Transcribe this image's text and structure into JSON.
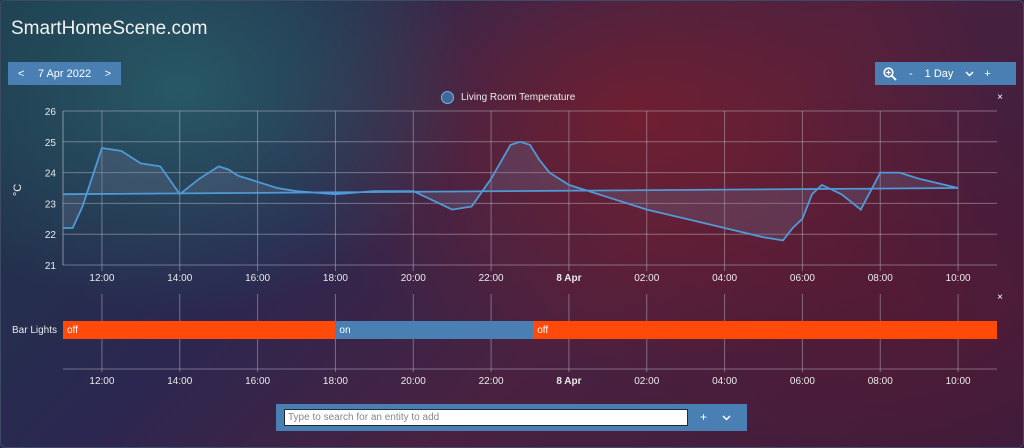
{
  "site": {
    "title": "SmartHomeScene.com"
  },
  "date_nav": {
    "prev": "<",
    "date": "7 Apr 2022",
    "next": ">"
  },
  "range": {
    "zoom_out": "-",
    "value": "1 Day",
    "zoom_in": "+"
  },
  "close_label": "×",
  "chart_data": {
    "type": "line",
    "series": [
      {
        "name": "Living Room Temperature",
        "color": "#4f9ad6"
      }
    ],
    "ylabel": "°C",
    "yticks": [
      "26",
      "25",
      "24",
      "23",
      "22",
      "21"
    ],
    "ylim": [
      21,
      26
    ],
    "xticks": [
      "12:00",
      "14:00",
      "16:00",
      "18:00",
      "20:00",
      "22:00",
      "8 Apr",
      "02:00",
      "04:00",
      "06:00",
      "08:00",
      "10:00"
    ],
    "x": [
      "11:00",
      "11:15",
      "11:30",
      "12:00",
      "12:30",
      "13:00",
      "13:30",
      "14:00",
      "14:30",
      "15:00",
      "15:15",
      "15:30",
      "16:00",
      "16:30",
      "17:00",
      "18:00",
      "19:00",
      "20:00",
      "21:00",
      "21:30",
      "22:00",
      "22:30",
      "22:45",
      "23:00",
      "23:15",
      "23:30",
      "0:00",
      "1:00",
      "2:00",
      "3:00",
      "4:00",
      "5:00",
      "5:30",
      "5:45",
      "6:00",
      "6:15",
      "6:30",
      "7:00",
      "7:30",
      "8:00",
      "8:30",
      "9:00",
      "10:00",
      "11:00"
    ],
    "values": [
      22.2,
      22.2,
      22.9,
      24.8,
      24.7,
      24.3,
      24.2,
      23.3,
      23.8,
      24.2,
      24.1,
      23.9,
      23.7,
      23.5,
      23.4,
      23.3,
      23.4,
      23.4,
      22.8,
      22.9,
      23.8,
      24.9,
      25.0,
      24.9,
      24.4,
      24.0,
      23.6,
      23.2,
      22.8,
      22.5,
      22.2,
      21.9,
      21.8,
      22.2,
      22.5,
      23.3,
      23.6,
      23.3,
      22.8,
      24.0,
      24.0,
      23.8,
      23.5,
      23.3
    ],
    "grid": true,
    "legend": "top"
  },
  "timeline": {
    "entity": "Bar Lights",
    "segments": [
      {
        "state": "off",
        "start": "11:00",
        "end": "18:00",
        "color": "#ff4a0a"
      },
      {
        "state": "on",
        "start": "18:00",
        "end": "23:05",
        "color": "#4a7fb3"
      },
      {
        "state": "off",
        "start": "23:05",
        "end": "11:00",
        "color": "#ff4a0a"
      }
    ],
    "xticks": [
      "12:00",
      "14:00",
      "16:00",
      "18:00",
      "20:00",
      "22:00",
      "8 Apr",
      "02:00",
      "04:00",
      "06:00",
      "08:00",
      "10:00"
    ]
  },
  "search": {
    "placeholder": "Type to search for an entity to add",
    "add": "+",
    "expand_icon": "chevron-down-icon"
  }
}
